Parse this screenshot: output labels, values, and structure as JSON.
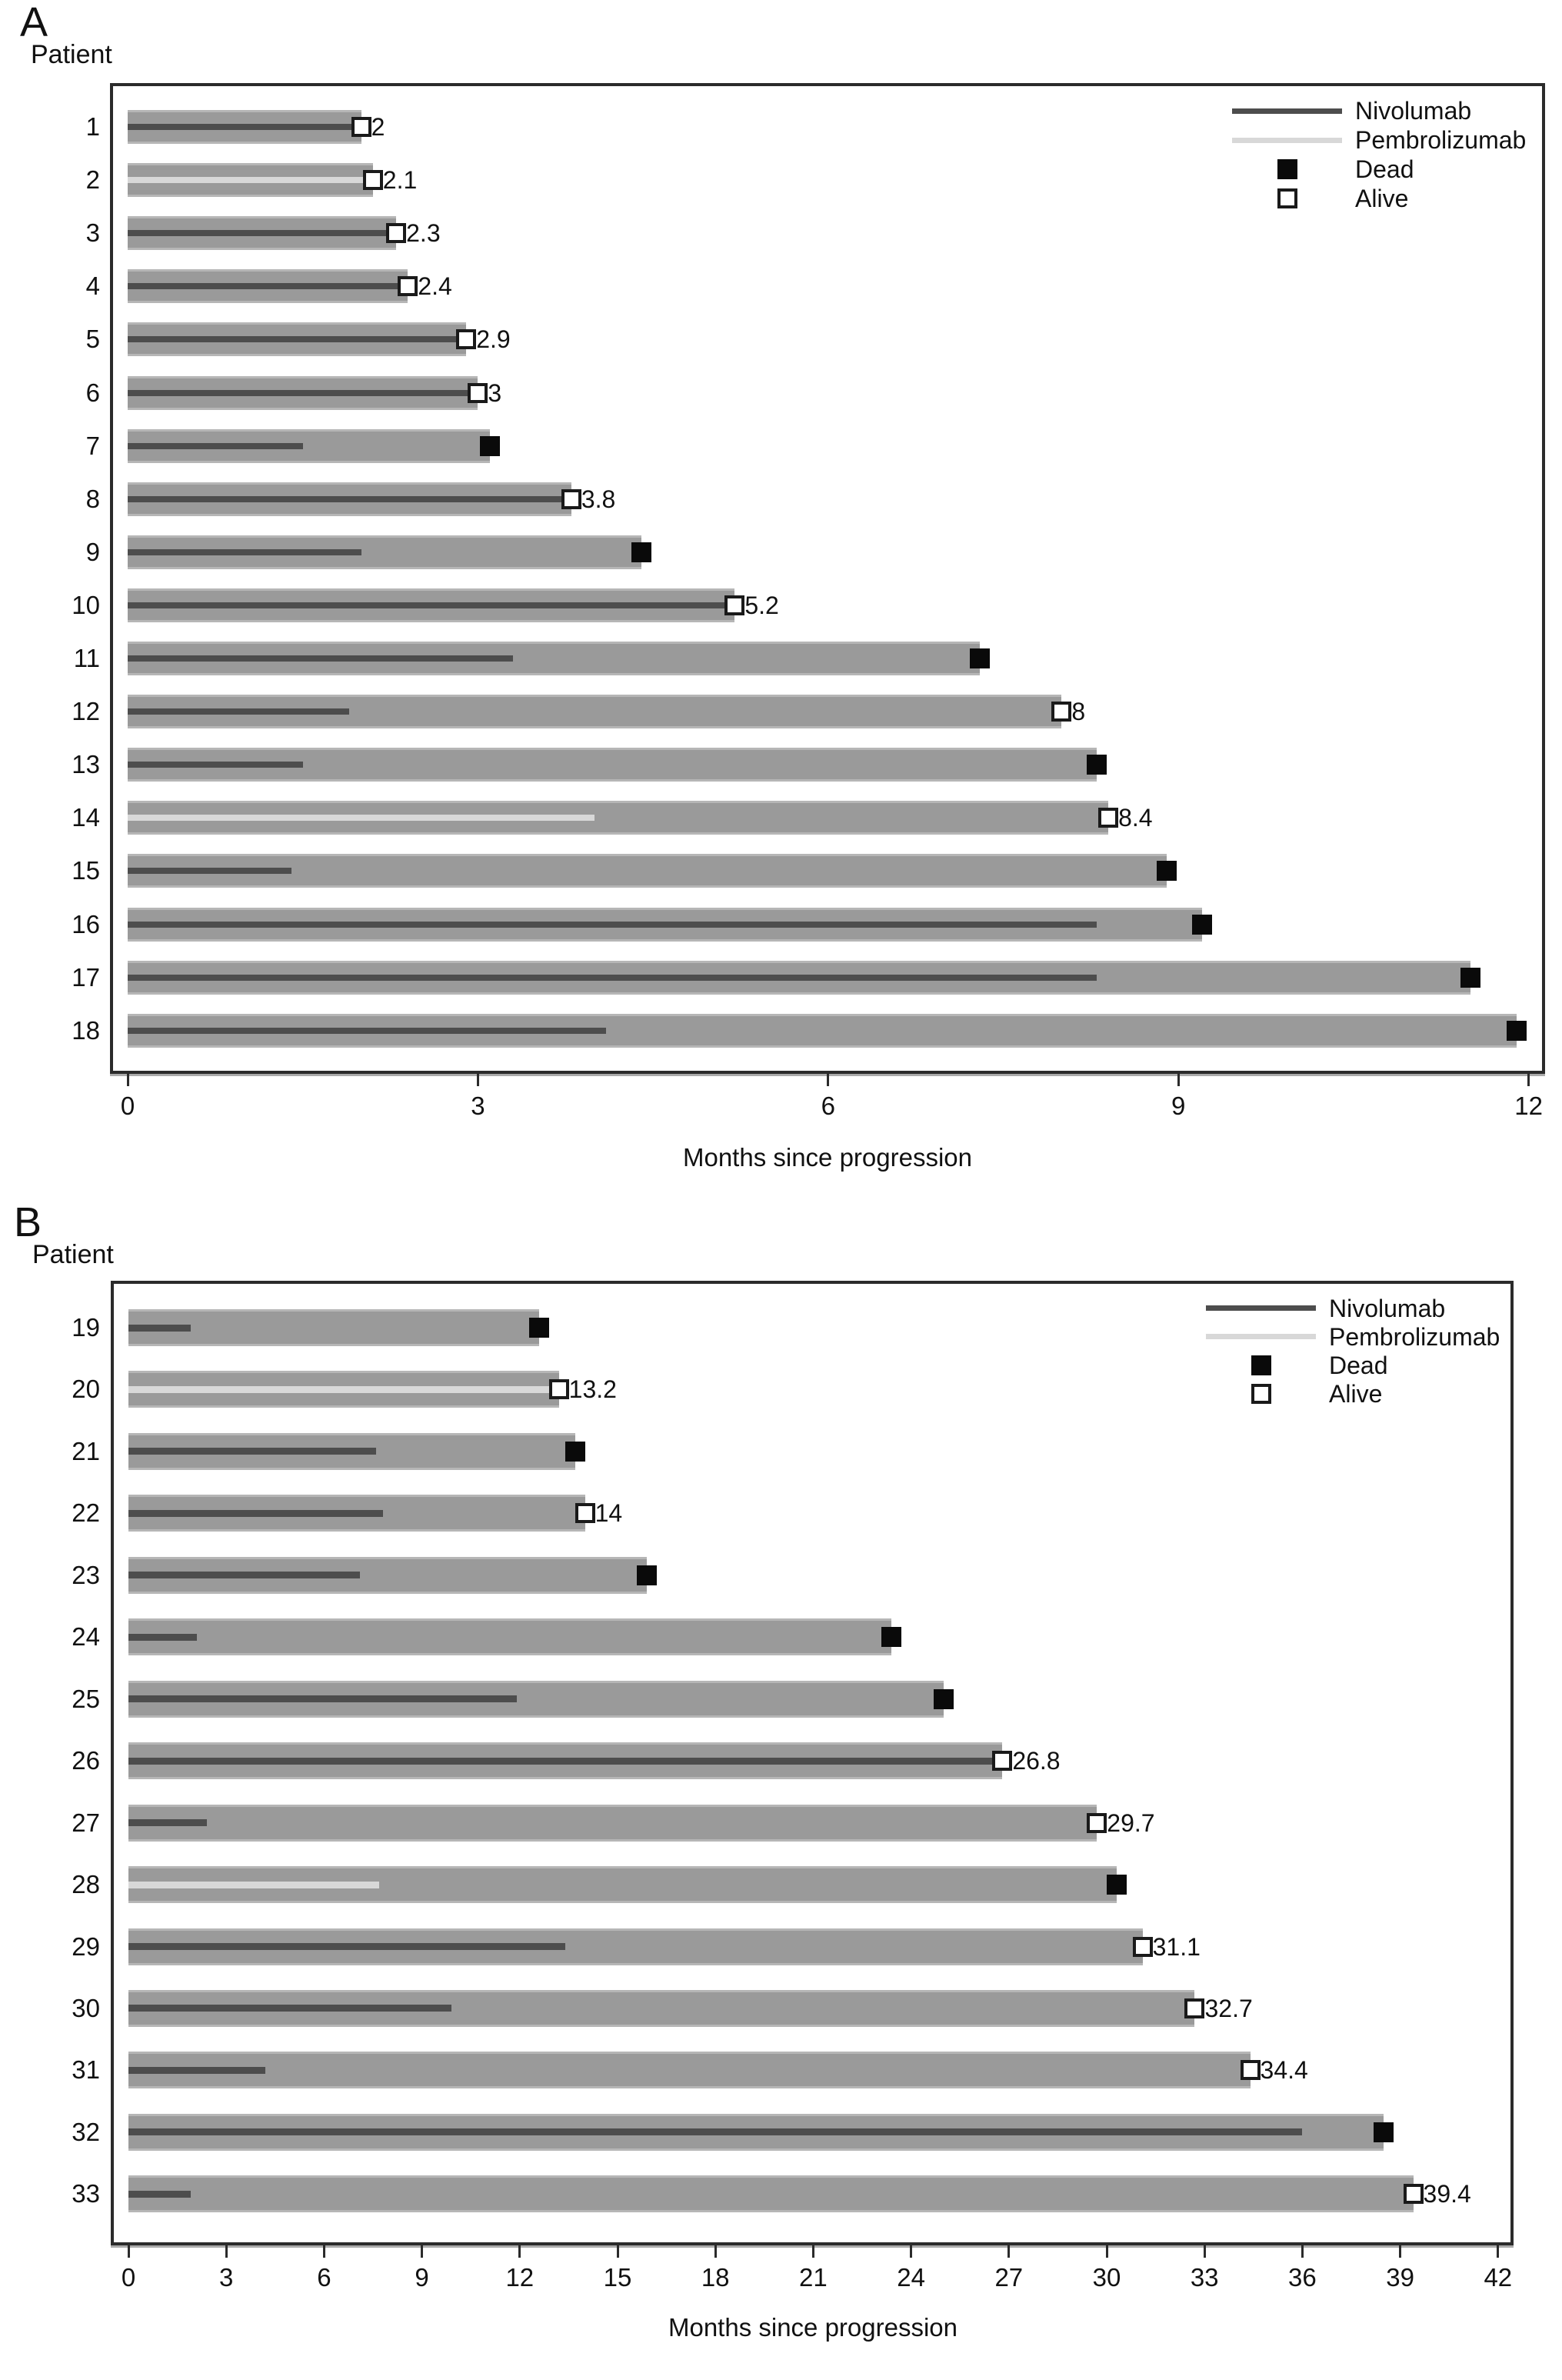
{
  "figure": {
    "panel_a_letter": "A",
    "panel_b_letter": "B",
    "y_axis_title": "Patient",
    "x_axis_title": "Months since progression",
    "colors": {
      "bar": "#9a9a9a",
      "bar_edge": "#b6b6b6",
      "nivolumab_line": "#4d4d4d",
      "pembrolizumab_line": "#d8d8d8",
      "dead_marker": "#0a0a0a",
      "alive_marker_fill": "#ffffff",
      "alive_marker_border": "#1a1a1a",
      "axis": "#2b2b2b",
      "text": "#111111"
    }
  },
  "chart_data": [
    {
      "type": "bar",
      "orientation": "horizontal",
      "title": "A",
      "xlabel": "Months since progression",
      "ylabel": "Patient",
      "xlim": [
        0,
        12
      ],
      "x_ticks": [
        "0",
        "3",
        "6",
        "9",
        "12"
      ],
      "grid": false,
      "legend_position": "top-right",
      "legend": [
        "Nivolumab",
        "Pembrolizumab",
        "Dead",
        "Alive"
      ],
      "categories": [
        "1",
        "2",
        "3",
        "4",
        "5",
        "6",
        "7",
        "8",
        "9",
        "10",
        "11",
        "12",
        "13",
        "14",
        "15",
        "16",
        "17",
        "18"
      ],
      "series": [
        {
          "name": "months_since_progression",
          "values": [
            2,
            2.1,
            2.3,
            2.4,
            2.9,
            3,
            3.1,
            3.8,
            4.4,
            5.2,
            7.3,
            8,
            8.3,
            8.4,
            8.9,
            9.2,
            11.5,
            11.9
          ]
        },
        {
          "name": "treatment_duration",
          "values": [
            2,
            2.1,
            2.3,
            2.4,
            2.9,
            3,
            1.5,
            3.8,
            2,
            5.2,
            3.3,
            1.9,
            1.5,
            4,
            1.4,
            8.3,
            8.3,
            4.1
          ]
        }
      ],
      "treatment": [
        "Nivolumab",
        "Pembrolizumab",
        "Nivolumab",
        "Nivolumab",
        "Nivolumab",
        "Nivolumab",
        "Nivolumab",
        "Nivolumab",
        "Nivolumab",
        "Nivolumab",
        "Nivolumab",
        "Nivolumab",
        "Nivolumab",
        "Pembrolizumab",
        "Nivolumab",
        "Nivolumab",
        "Nivolumab",
        "Nivolumab"
      ],
      "status": [
        "Alive",
        "Alive",
        "Alive",
        "Alive",
        "Alive",
        "Alive",
        "Dead",
        "Alive",
        "Dead",
        "Alive",
        "Dead",
        "Alive",
        "Dead",
        "Alive",
        "Dead",
        "Dead",
        "Dead",
        "Dead"
      ],
      "bar_labels": [
        "2",
        "2.1",
        "2.3",
        "2.4",
        "2.9",
        "3",
        "",
        "3.8",
        "",
        "5.2",
        "",
        "8",
        "",
        "8.4",
        "",
        "",
        "",
        ""
      ]
    },
    {
      "type": "bar",
      "orientation": "horizontal",
      "title": "B",
      "xlabel": "Months since progression",
      "ylabel": "Patient",
      "xlim": [
        0,
        42
      ],
      "x_ticks": [
        "0",
        "3",
        "6",
        "9",
        "12",
        "15",
        "18",
        "21",
        "24",
        "27",
        "30",
        "33",
        "36",
        "39",
        "42"
      ],
      "grid": false,
      "legend_position": "top-right",
      "legend": [
        "Nivolumab",
        "Pembrolizumab",
        "Dead",
        "Alive"
      ],
      "categories": [
        "19",
        "20",
        "21",
        "22",
        "23",
        "24",
        "25",
        "26",
        "27",
        "28",
        "29",
        "30",
        "31",
        "32",
        "33"
      ],
      "series": [
        {
          "name": "months_since_progression",
          "values": [
            12.6,
            13.2,
            13.7,
            14,
            15.9,
            23.4,
            25,
            26.8,
            29.7,
            30.3,
            31.1,
            32.7,
            34.4,
            38.5,
            39.4
          ]
        },
        {
          "name": "treatment_duration",
          "values": [
            1.9,
            13.2,
            7.6,
            7.8,
            7.1,
            2.1,
            11.9,
            26.8,
            2.4,
            7.7,
            13.4,
            9.9,
            4.2,
            36,
            1.9
          ]
        }
      ],
      "treatment": [
        "Nivolumab",
        "Pembrolizumab",
        "Nivolumab",
        "Nivolumab",
        "Nivolumab",
        "Nivolumab",
        "Nivolumab",
        "Nivolumab",
        "Nivolumab",
        "Pembrolizumab",
        "Nivolumab",
        "Nivolumab",
        "Nivolumab",
        "Nivolumab",
        "Nivolumab"
      ],
      "status": [
        "Dead",
        "Alive",
        "Dead",
        "Alive",
        "Dead",
        "Dead",
        "Dead",
        "Alive",
        "Alive",
        "Dead",
        "Alive",
        "Alive",
        "Alive",
        "Dead",
        "Alive"
      ],
      "bar_labels": [
        "",
        "13.2",
        "",
        "14",
        "",
        "",
        "",
        "26.8",
        "29.7",
        "",
        "31.1",
        "32.7",
        "34.4",
        "",
        "39.4"
      ]
    }
  ]
}
